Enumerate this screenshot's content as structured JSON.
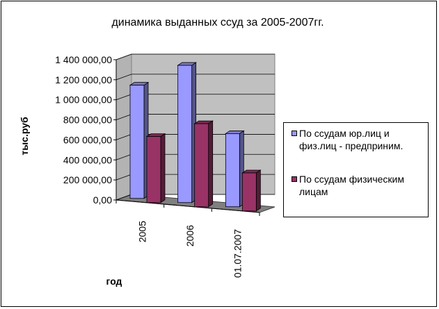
{
  "chart_data": {
    "type": "bar",
    "title": "динамика выданных ссуд за 2005-2007гг.",
    "xlabel": "год",
    "ylabel": "тыс.руб",
    "categories": [
      "2005",
      "2006",
      "01.07.2007"
    ],
    "series": [
      {
        "name": "По ссудам юр.лиц и физ.лиц - предприним.",
        "values": [
          1130000,
          1370000,
          730000
        ],
        "color": "#9999FF"
      },
      {
        "name": "По ссудам физическим лицам",
        "values": [
          660000,
          830000,
          380000
        ],
        "color": "#993366"
      }
    ],
    "ylim": [
      0,
      1400000
    ],
    "yticks": [
      "0,00",
      "200 000,00",
      "400 000,00",
      "600 000,00",
      "800 000,00",
      "1 000 000,00",
      "1 200 000,00",
      "1 400 000,00"
    ],
    "grid": true,
    "legend": "right",
    "wall_color": "#C0C0C0"
  }
}
